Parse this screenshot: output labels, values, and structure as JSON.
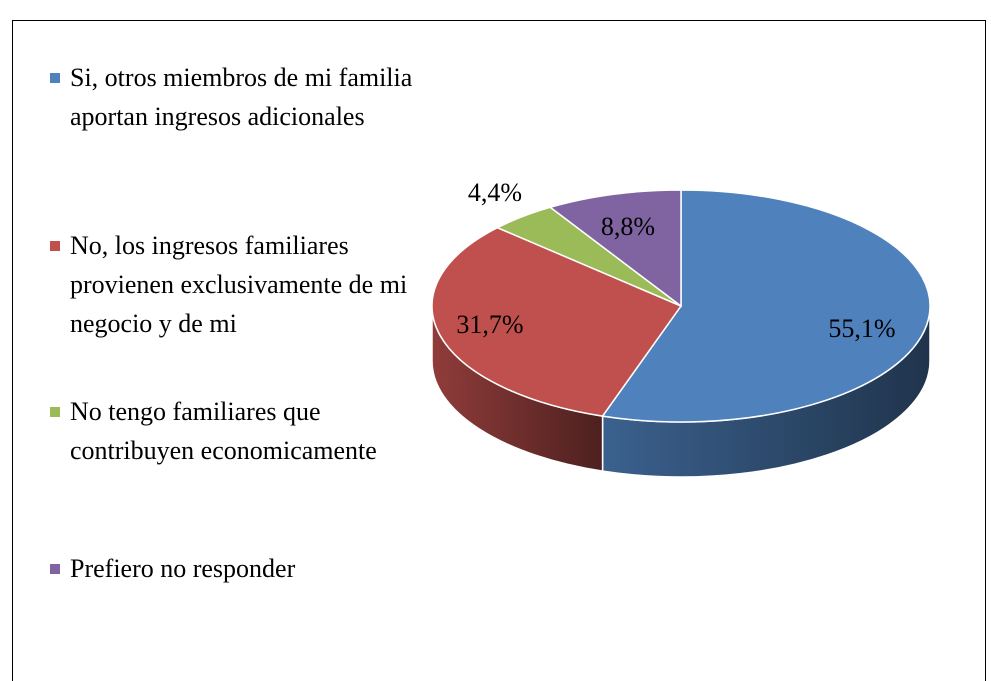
{
  "chart_data": {
    "type": "pie",
    "categories": [
      "Si, otros miembros de mi familia aportan ingresos adicionales",
      "No, los ingresos familiares provienen exclusivamente de mi negocio y de mi",
      "No tengo familiares que contribuyen economicamente",
      "Prefiero no responder"
    ],
    "values": [
      55.1,
      31.7,
      4.4,
      8.8
    ],
    "value_labels": [
      "55,1%",
      "31,7%",
      "4,4%",
      "8,8%"
    ],
    "colors": [
      "#4f81bd",
      "#c0504d",
      "#9bbb59",
      "#8064a2"
    ],
    "legend": "left"
  }
}
